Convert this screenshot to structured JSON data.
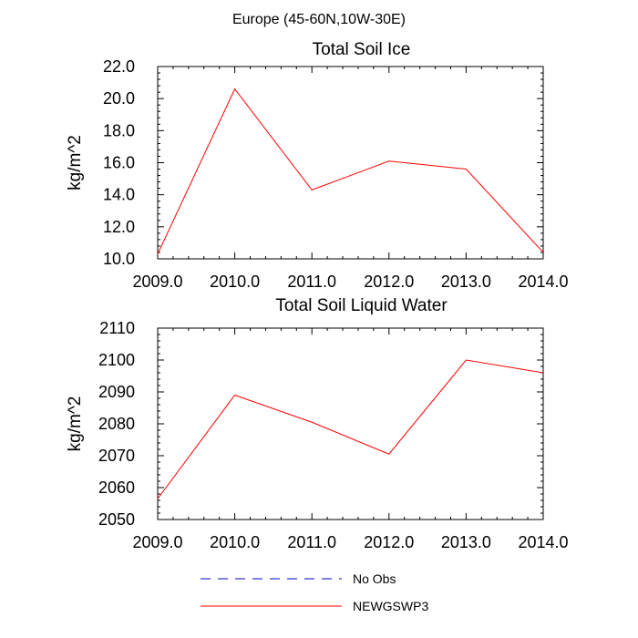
{
  "figure": {
    "title": "Europe (45-60N,10W-30E)"
  },
  "legend": {
    "entries": [
      {
        "label": "No Obs",
        "color": "#0000cc",
        "dash": true
      },
      {
        "label": "NEWGSWP3",
        "color": "#ff0000",
        "dash": false
      }
    ]
  },
  "chart_data": [
    {
      "type": "line",
      "title": "Total Soil Ice",
      "xlabel": "",
      "ylabel": "kg/m^2",
      "xlim": [
        2009.0,
        2014.0
      ],
      "ylim": [
        10.0,
        22.0
      ],
      "xticks": [
        2009.0,
        2010.0,
        2011.0,
        2012.0,
        2013.0,
        2014.0
      ],
      "xtick_labels": [
        "2009.0",
        "2010.0",
        "2011.0",
        "2012.0",
        "2013.0",
        "2014.0"
      ],
      "yticks": [
        10.0,
        12.0,
        14.0,
        16.0,
        18.0,
        20.0,
        22.0
      ],
      "ytick_labels": [
        "10.0",
        "12.0",
        "14.0",
        "16.0",
        "18.0",
        "20.0",
        "22.0"
      ],
      "series": [
        {
          "name": "NEWGSWP3",
          "color": "#ff0000",
          "x": [
            2009,
            2010,
            2011,
            2012,
            2013,
            2014
          ],
          "values": [
            10.3,
            20.6,
            14.3,
            16.1,
            15.6,
            10.4
          ]
        }
      ]
    },
    {
      "type": "line",
      "title": "Total Soil Liquid Water",
      "xlabel": "",
      "ylabel": "kg/m^2",
      "xlim": [
        2009.0,
        2014.0
      ],
      "ylim": [
        2050,
        2110
      ],
      "xticks": [
        2009.0,
        2010.0,
        2011.0,
        2012.0,
        2013.0,
        2014.0
      ],
      "xtick_labels": [
        "2009.0",
        "2010.0",
        "2011.0",
        "2012.0",
        "2013.0",
        "2014.0"
      ],
      "yticks": [
        2050,
        2060,
        2070,
        2080,
        2090,
        2100,
        2110
      ],
      "ytick_labels": [
        "2050",
        "2060",
        "2070",
        "2080",
        "2090",
        "2100",
        "2110"
      ],
      "series": [
        {
          "name": "NEWGSWP3",
          "color": "#ff0000",
          "x": [
            2009,
            2010,
            2011,
            2012,
            2013,
            2014
          ],
          "values": [
            2056.5,
            2089.0,
            2080.5,
            2070.5,
            2100.0,
            2096.0
          ]
        }
      ]
    }
  ]
}
